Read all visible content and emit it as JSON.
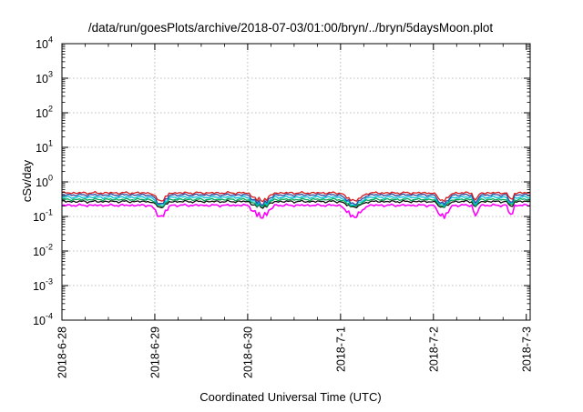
{
  "chart_data": {
    "type": "line",
    "title": "/data/run/goesPlots/archive/2018-07-03/01:00/bryn/../bryn/5daysMoon.plot",
    "xlabel": "Coordinated Universal Time (UTC)",
    "ylabel": "cSv/day",
    "scale_y": "log",
    "grid": true,
    "legend": "none",
    "xlim": [
      "2018-06-28",
      "2018-07-03 01:00"
    ],
    "ylim": [
      0.0001,
      10000
    ],
    "x_ticks": [
      "2018-6-28",
      "2018-6-29",
      "2018-6-30",
      "2018-7-1",
      "2018-7-2",
      "2018-7-3"
    ],
    "y_ticks": [
      {
        "base": "10",
        "exp": "-4"
      },
      {
        "base": "10",
        "exp": "-3"
      },
      {
        "base": "10",
        "exp": "-2"
      },
      {
        "base": "10",
        "exp": "-1"
      },
      {
        "base": "10",
        "exp": "0"
      },
      {
        "base": "10",
        "exp": "1"
      },
      {
        "base": "10",
        "exp": "2"
      },
      {
        "base": "10",
        "exp": "3"
      },
      {
        "base": "10",
        "exp": "4"
      }
    ],
    "series": [
      {
        "color": "#d7191c",
        "base": 0.48,
        "dip_factor": 0.55
      },
      {
        "color": "#2b4aa0",
        "base": 0.42,
        "dip_factor": 0.5
      },
      {
        "color": "#00c0e0",
        "base": 0.36,
        "dip_factor": 0.55
      },
      {
        "color": "#00a651",
        "base": 0.31,
        "dip_factor": 0.6
      },
      {
        "color": "#111111",
        "base": 0.27,
        "dip_factor": 0.65
      },
      {
        "color": "#ff00ff",
        "base": 0.21,
        "dip_factor": 0.4
      }
    ],
    "dips": [
      {
        "start": "2018-06-28 23:00",
        "end": "2018-06-29 04:00"
      },
      {
        "start": "2018-06-30 00:00",
        "end": "2018-06-30 07:00"
      },
      {
        "start": "2018-07-01 00:00",
        "end": "2018-07-01 07:00"
      },
      {
        "start": "2018-07-02 00:00",
        "end": "2018-07-02 05:00"
      },
      {
        "start": "2018-07-02 10:00",
        "end": "2018-07-02 12:00"
      },
      {
        "start": "2018-07-02 19:00",
        "end": "2018-07-02 21:00"
      }
    ]
  }
}
